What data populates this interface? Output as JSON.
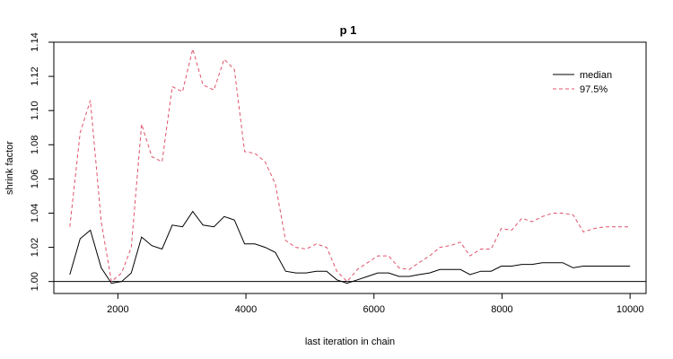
{
  "chart_data": {
    "type": "line",
    "title": "p 1",
    "xlabel": "last iteration in chain",
    "ylabel": "shrink factor",
    "xlim": [
      1000,
      10250
    ],
    "ylim": [
      0.993,
      1.14
    ],
    "x_ticks": [
      2000,
      4000,
      6000,
      8000,
      10000
    ],
    "y_ticks": [
      1.0,
      1.02,
      1.04,
      1.06,
      1.08,
      1.1,
      1.12,
      1.14
    ],
    "y_tick_labels": [
      "1.00",
      "1.02",
      "1.04",
      "1.06",
      "1.08",
      "1.10",
      "1.12",
      "1.14"
    ],
    "reference_line": 1.0,
    "legend_position": "top-right",
    "series": [
      {
        "name": "median",
        "color": "#000000",
        "dash": "solid",
        "points": [
          [
            1250,
            1.004
          ],
          [
            1410,
            1.025
          ],
          [
            1570,
            1.03
          ],
          [
            1740,
            1.008
          ],
          [
            1900,
            0.999
          ],
          [
            2060,
            1.0
          ],
          [
            2210,
            1.005
          ],
          [
            2370,
            1.026
          ],
          [
            2530,
            1.021
          ],
          [
            2690,
            1.019
          ],
          [
            2850,
            1.033
          ],
          [
            3010,
            1.032
          ],
          [
            3170,
            1.041
          ],
          [
            3330,
            1.033
          ],
          [
            3500,
            1.032
          ],
          [
            3660,
            1.038
          ],
          [
            3820,
            1.036
          ],
          [
            3980,
            1.022
          ],
          [
            4140,
            1.022
          ],
          [
            4300,
            1.02
          ],
          [
            4460,
            1.017
          ],
          [
            4620,
            1.006
          ],
          [
            4780,
            1.005
          ],
          [
            4940,
            1.005
          ],
          [
            5100,
            1.006
          ],
          [
            5260,
            1.006
          ],
          [
            5420,
            1.001
          ],
          [
            5580,
            0.999
          ],
          [
            5740,
            1.001
          ],
          [
            5900,
            1.003
          ],
          [
            6060,
            1.005
          ],
          [
            6230,
            1.005
          ],
          [
            6390,
            1.003
          ],
          [
            6550,
            1.003
          ],
          [
            6700,
            1.004
          ],
          [
            6870,
            1.005
          ],
          [
            7030,
            1.007
          ],
          [
            7190,
            1.007
          ],
          [
            7350,
            1.007
          ],
          [
            7500,
            1.004
          ],
          [
            7670,
            1.006
          ],
          [
            7830,
            1.006
          ],
          [
            7990,
            1.009
          ],
          [
            8150,
            1.009
          ],
          [
            8310,
            1.01
          ],
          [
            8470,
            1.01
          ],
          [
            8630,
            1.011
          ],
          [
            8790,
            1.011
          ],
          [
            8950,
            1.011
          ],
          [
            9110,
            1.008
          ],
          [
            9270,
            1.009
          ],
          [
            9440,
            1.009
          ],
          [
            9600,
            1.009
          ],
          [
            9760,
            1.009
          ],
          [
            10000,
            1.009
          ]
        ]
      },
      {
        "name": "97.5%",
        "color": "#df536b",
        "dash": "dashed",
        "points": [
          [
            1250,
            1.032
          ],
          [
            1410,
            1.087
          ],
          [
            1570,
            1.106
          ],
          [
            1740,
            1.035
          ],
          [
            1900,
            1.0
          ],
          [
            2060,
            1.005
          ],
          [
            2210,
            1.02
          ],
          [
            2370,
            1.092
          ],
          [
            2530,
            1.073
          ],
          [
            2690,
            1.07
          ],
          [
            2850,
            1.114
          ],
          [
            3010,
            1.111
          ],
          [
            3170,
            1.136
          ],
          [
            3330,
            1.115
          ],
          [
            3500,
            1.112
          ],
          [
            3660,
            1.13
          ],
          [
            3820,
            1.124
          ],
          [
            3980,
            1.076
          ],
          [
            4140,
            1.075
          ],
          [
            4300,
            1.07
          ],
          [
            4460,
            1.057
          ],
          [
            4620,
            1.024
          ],
          [
            4780,
            1.02
          ],
          [
            4940,
            1.019
          ],
          [
            5100,
            1.022
          ],
          [
            5260,
            1.02
          ],
          [
            5420,
            1.006
          ],
          [
            5580,
            1.0
          ],
          [
            5740,
            1.007
          ],
          [
            5900,
            1.011
          ],
          [
            6060,
            1.015
          ],
          [
            6230,
            1.015
          ],
          [
            6390,
            1.008
          ],
          [
            6550,
            1.007
          ],
          [
            6700,
            1.011
          ],
          [
            6870,
            1.015
          ],
          [
            7030,
            1.02
          ],
          [
            7190,
            1.021
          ],
          [
            7350,
            1.023
          ],
          [
            7500,
            1.015
          ],
          [
            7670,
            1.019
          ],
          [
            7830,
            1.019
          ],
          [
            7990,
            1.031
          ],
          [
            8150,
            1.03
          ],
          [
            8310,
            1.037
          ],
          [
            8470,
            1.035
          ],
          [
            8630,
            1.038
          ],
          [
            8790,
            1.04
          ],
          [
            8950,
            1.04
          ],
          [
            9110,
            1.039
          ],
          [
            9270,
            1.029
          ],
          [
            9440,
            1.031
          ],
          [
            9600,
            1.032
          ],
          [
            9760,
            1.032
          ],
          [
            10000,
            1.032
          ]
        ]
      }
    ]
  }
}
